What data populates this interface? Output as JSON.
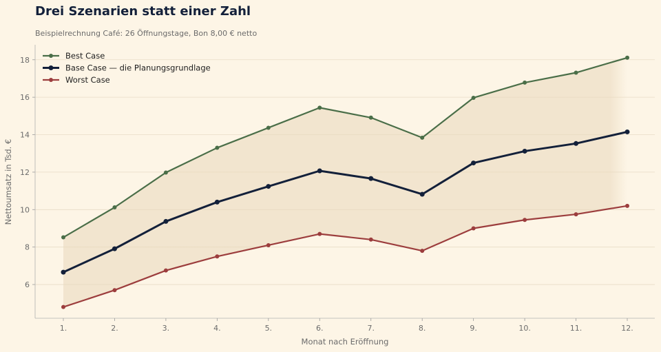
{
  "chart_data": {
    "type": "line",
    "title": "Drei Szenarien statt einer Zahl",
    "subtitle": "Beispielrechnung Café: 26 Öffnungstage, Bon 8,00 € netto",
    "xlabel": "Monat nach Eröffnung",
    "ylabel": "Nettoumsatz in Tsd. €",
    "categories": [
      "1.",
      "2.",
      "3.",
      "4.",
      "5.",
      "6.",
      "7.",
      "8.",
      "9.",
      "10.",
      "11.",
      "12."
    ],
    "ylim": [
      4.2,
      18.8
    ],
    "yticks": [
      "6",
      "8",
      "10",
      "12",
      "14",
      "16",
      "18"
    ],
    "grid": "horizontal",
    "legend_position": "top-left",
    "band": "between best and worst case",
    "series": [
      {
        "name": "Best Case",
        "color": "#4a6e48",
        "emphasis": false,
        "values": [
          8.52,
          10.12,
          11.98,
          13.3,
          14.37,
          15.44,
          14.91,
          13.84,
          15.97,
          16.78,
          17.31,
          18.11
        ]
      },
      {
        "name": "Base Case — die Planungsgrundlage",
        "color": "#13203a",
        "emphasis": true,
        "values": [
          6.66,
          7.91,
          9.37,
          10.4,
          11.24,
          12.07,
          11.66,
          10.82,
          12.49,
          13.12,
          13.53,
          14.15
        ]
      },
      {
        "name": "Worst Case",
        "color": "#9c3d3d",
        "emphasis": false,
        "values": [
          4.8,
          5.7,
          6.75,
          7.5,
          8.1,
          8.7,
          8.4,
          7.8,
          9.0,
          9.45,
          9.75,
          10.2
        ]
      }
    ]
  }
}
